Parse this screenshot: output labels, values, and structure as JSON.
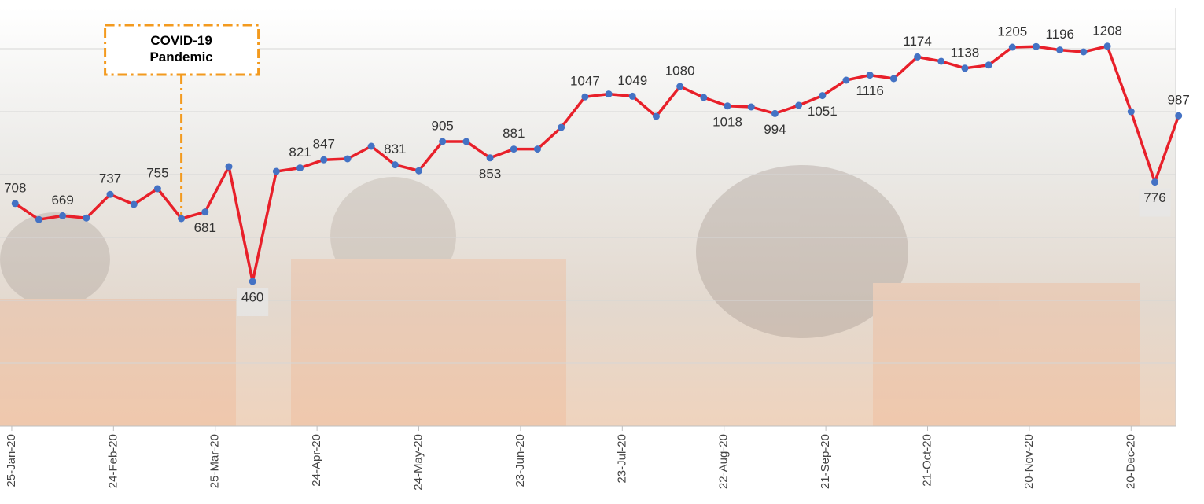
{
  "chart_data": {
    "type": "line",
    "x": [
      "2020-01-26",
      "2020-02-02",
      "2020-02-09",
      "2020-02-16",
      "2020-02-23",
      "2020-03-01",
      "2020-03-08",
      "2020-03-15",
      "2020-03-22",
      "2020-03-29",
      "2020-04-05",
      "2020-04-12",
      "2020-04-19",
      "2020-04-26",
      "2020-05-03",
      "2020-05-10",
      "2020-05-17",
      "2020-05-24",
      "2020-05-31",
      "2020-06-07",
      "2020-06-14",
      "2020-06-21",
      "2020-06-28",
      "2020-07-05",
      "2020-07-12",
      "2020-07-19",
      "2020-07-26",
      "2020-08-02",
      "2020-08-09",
      "2020-08-16",
      "2020-08-23",
      "2020-08-30",
      "2020-09-06",
      "2020-09-13",
      "2020-09-20",
      "2020-09-27",
      "2020-10-04",
      "2020-10-11",
      "2020-10-18",
      "2020-10-25",
      "2020-11-01",
      "2020-11-08",
      "2020-11-15",
      "2020-11-22",
      "2020-11-29",
      "2020-12-06",
      "2020-12-13",
      "2020-12-20",
      "2020-12-27",
      "2021-01-03"
    ],
    "series": [
      {
        "color": "#e8202a",
        "marker_color": "#4472c4",
        "values": [
          708,
          657,
          669,
          662,
          737,
          705,
          755,
          660,
          681,
          825,
          460,
          810,
          821,
          847,
          850,
          890,
          831,
          812,
          905,
          905,
          853,
          881,
          881,
          950,
          1047,
          1056,
          1049,
          985,
          1080,
          1045,
          1018,
          1015,
          994,
          1020,
          1051,
          1100,
          1116,
          1105,
          1174,
          1160,
          1138,
          1148,
          1205,
          1207,
          1196,
          1190,
          1208,
          1000,
          776,
          987
        ],
        "value_labels": [
          "708",
          null,
          "669",
          null,
          "737",
          null,
          "755",
          null,
          "681",
          null,
          "460",
          null,
          "821",
          "847",
          null,
          null,
          "831",
          null,
          "905",
          null,
          "853",
          "881",
          null,
          null,
          "1047",
          null,
          "1049",
          null,
          "1080",
          null,
          "1018",
          null,
          "994",
          null,
          "1051",
          null,
          "1116",
          null,
          "1174",
          null,
          "1138",
          null,
          "1205",
          null,
          "1196",
          null,
          "1208",
          null,
          "776",
          "987"
        ]
      }
    ],
    "xlim": [
      "2020-01-22",
      "2021-01-04"
    ],
    "xticks": [
      {
        "value": "2020-01-25",
        "label": "25-Jan-20"
      },
      {
        "value": "2020-02-24",
        "label": "24-Feb-20"
      },
      {
        "value": "2020-03-25",
        "label": "25-Mar-20"
      },
      {
        "value": "2020-04-24",
        "label": "24-Apr-20"
      },
      {
        "value": "2020-05-24",
        "label": "24-May-20"
      },
      {
        "value": "2020-06-23",
        "label": "23-Jun-20"
      },
      {
        "value": "2020-07-23",
        "label": "23-Jul-20"
      },
      {
        "value": "2020-08-22",
        "label": "22-Aug-20"
      },
      {
        "value": "2020-09-21",
        "label": "21-Sep-20"
      },
      {
        "value": "2020-10-21",
        "label": "21-Oct-20"
      },
      {
        "value": "2020-11-20",
        "label": "20-Nov-20"
      },
      {
        "value": "2020-12-20",
        "label": "20-Dec-20"
      }
    ],
    "ylim": [
      0,
      1300
    ],
    "yticks": [
      0,
      200,
      400,
      600,
      800,
      1000,
      1200
    ],
    "grid": true,
    "annotations": [
      {
        "text": "COVID-19 Pandemic",
        "x": "2020-03-15"
      }
    ]
  }
}
